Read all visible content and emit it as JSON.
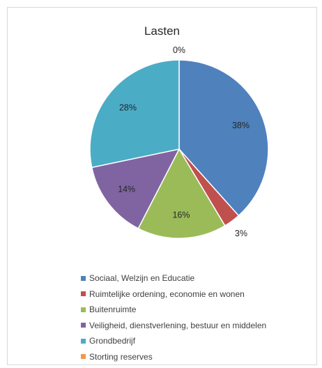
{
  "chart_data": {
    "type": "pie",
    "title": "Lasten",
    "unit": "%",
    "legend_position": "bottom",
    "series": [
      {
        "name": "Sociaal, Welzijn en Educatie",
        "value": 38,
        "label": "38%",
        "color": "#4f81bd"
      },
      {
        "name": "Ruimtelijke ordening, economie en wonen",
        "value": 3,
        "label": "3%",
        "color": "#c0504d"
      },
      {
        "name": "Buitenruimte",
        "value": 16,
        "label": "16%",
        "color": "#9bbb59"
      },
      {
        "name": "Veiligheid, dienstverlening, bestuur en middelen",
        "value": 14,
        "label": "14%",
        "color": "#8064a2"
      },
      {
        "name": "Grondbedrijf",
        "value": 28,
        "label": "28%",
        "color": "#4bacc6"
      },
      {
        "name": "Storting reserves",
        "value": 0,
        "label": "0%",
        "color": "#f79646"
      }
    ]
  }
}
